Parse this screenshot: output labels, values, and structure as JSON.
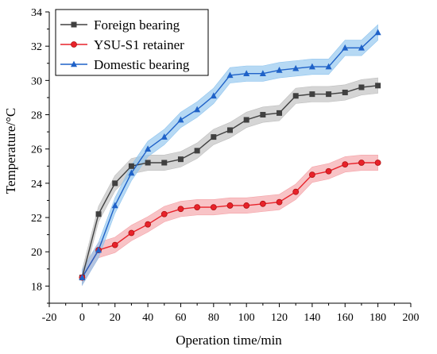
{
  "chart_data": {
    "type": "line",
    "xlabel": "Operation time/min",
    "ylabel": "Temperature/°C",
    "xlim": [
      -20,
      200
    ],
    "ylim": [
      17,
      34
    ],
    "x_ticks": [
      -20,
      0,
      20,
      40,
      60,
      80,
      100,
      120,
      140,
      160,
      180,
      200
    ],
    "y_ticks": [
      18,
      20,
      22,
      24,
      26,
      28,
      30,
      32,
      34
    ],
    "grid": false,
    "legend_position": "top-left",
    "x": [
      0,
      10,
      20,
      30,
      40,
      50,
      60,
      70,
      80,
      90,
      100,
      110,
      120,
      130,
      140,
      150,
      160,
      170,
      180
    ],
    "series": [
      {
        "name": "Foreign bearing",
        "marker": "square",
        "color": "#404040",
        "band_color": "#bfbfbf",
        "values": [
          18.5,
          22.2,
          24.0,
          25.0,
          25.2,
          25.2,
          25.4,
          25.9,
          26.7,
          27.1,
          27.7,
          28.0,
          28.1,
          29.1,
          29.2,
          29.2,
          29.3,
          29.6,
          29.7
        ]
      },
      {
        "name": "YSU-S1 retainer",
        "marker": "circle",
        "color": "#e8222a",
        "marker_fill": "#e8222a",
        "band_color": "#f4a3a8",
        "values": [
          18.5,
          20.1,
          20.4,
          21.1,
          21.6,
          22.2,
          22.5,
          22.6,
          22.6,
          22.7,
          22.7,
          22.8,
          22.9,
          23.5,
          24.5,
          24.7,
          25.1,
          25.2,
          25.2
        ]
      },
      {
        "name": "Domestic bearing",
        "marker": "triangle",
        "color": "#1f62c8",
        "band_color": "#8fc4ee",
        "values": [
          18.5,
          20.1,
          22.7,
          24.6,
          26.0,
          26.7,
          27.7,
          28.3,
          29.1,
          30.3,
          30.4,
          30.4,
          30.6,
          30.7,
          30.8,
          30.8,
          31.9,
          31.9,
          32.8
        ]
      }
    ]
  }
}
